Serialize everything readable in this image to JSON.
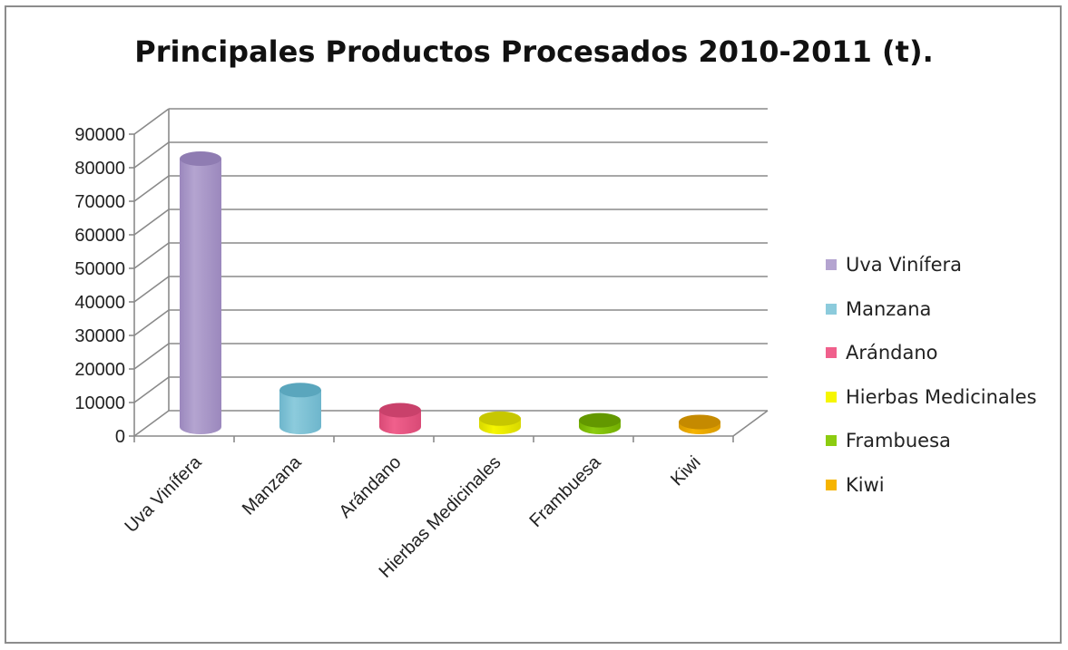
{
  "chart_data": {
    "type": "bar",
    "title": "Principales Productos Procesados 2010-2011 (t).",
    "categories": [
      "Uva Vinífera",
      "Manzana",
      "Arándano",
      "Hierbas Medicinales",
      "Frambuesa",
      "Kiwi"
    ],
    "values": [
      80000,
      11000,
      5000,
      2500,
      2000,
      1500
    ],
    "ylim": [
      0,
      90000
    ],
    "yticks": [
      0,
      10000,
      20000,
      30000,
      40000,
      50000,
      60000,
      70000,
      80000,
      90000
    ],
    "grid": true,
    "legend_position": "right",
    "colors": [
      "#b4a4d0",
      "#8ccbdc",
      "#f0608c",
      "#f6f600",
      "#8ccc10",
      "#f6b400"
    ],
    "shades": [
      "#9b88bd",
      "#6eb6cc",
      "#d94a76",
      "#d8d800",
      "#72ad00",
      "#d89a00"
    ],
    "tops": [
      "#8f7cb2",
      "#5aa6bd",
      "#c9416b",
      "#c7c700",
      "#639800",
      "#c58a00"
    ]
  }
}
